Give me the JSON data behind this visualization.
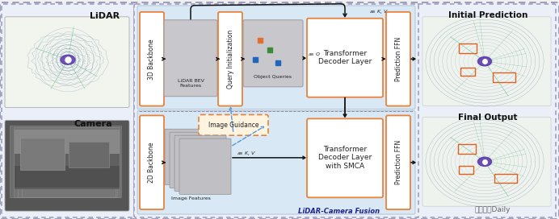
{
  "fig_width": 6.92,
  "fig_height": 2.72,
  "dpi": 100,
  "bg_color": "#f0f0f0",
  "lidar_label": "LiDAR",
  "camera_label": "Camera",
  "initial_pred_label": "Initial Prediction",
  "final_output_label": "Final Output",
  "fusion_label": "LiDAR-Camera Fusion",
  "watermark": "自动驾驶Daily",
  "orange": "#E8823A",
  "blue_dash": "#5599DD",
  "light_blue_bg": "#D8E8F4",
  "light_blue_bg2": "#C8DCF0",
  "white": "#FFFFFF",
  "text_dark": "#222222",
  "gray_medium": "#B8B8BC",
  "backbone_3d": "3D Backbone",
  "lidar_bev": "LiDAR BEV\nFeatures",
  "query_init": "Query Initialization",
  "object_queries": "Object Queries",
  "transformer_top": "Transformer\nDecoder Layer",
  "prediction_ffn": "Prediction FFN",
  "backbone_2d": "2D Backbone",
  "image_features": "Image Features",
  "image_guidance": "Image Guidance",
  "transformer_bot": "Transformer\nDecoder Layer\nwith SMCA",
  "as_kv_top": "as $K$, $V$",
  "as_q_top": "as $Q$",
  "as_kv_bot": "as $K$, $V$"
}
